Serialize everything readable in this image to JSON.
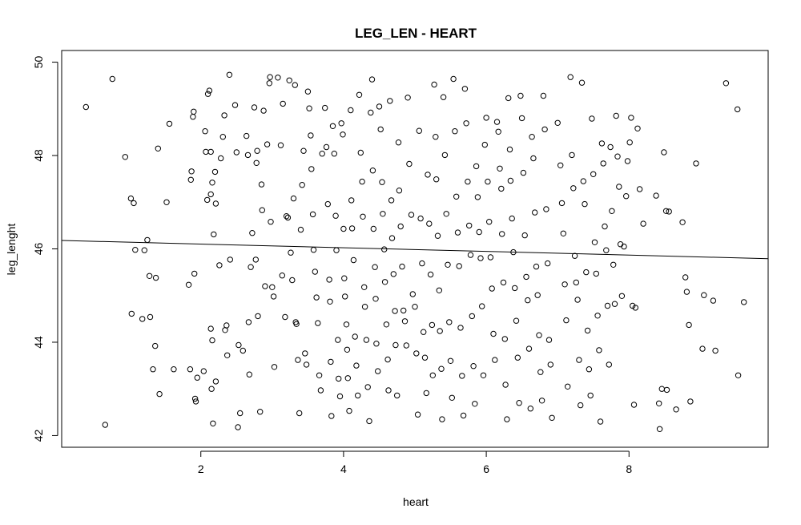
{
  "chart_data": {
    "type": "scatter",
    "title": "LEG_LEN - HEART",
    "xlabel": "heart",
    "ylabel": "leg_lenght",
    "xlim": [
      0.05,
      9.95
    ],
    "ylim": [
      41.75,
      50.25
    ],
    "xticks": [
      2,
      4,
      6,
      8
    ],
    "yticks": [
      42,
      44,
      46,
      48,
      50
    ],
    "marker": "open-circle",
    "colors": {
      "points": "#000000",
      "line": "#000000",
      "frame": "#000000",
      "background": "#ffffff"
    },
    "grid": false,
    "legend": "none",
    "regression_line": {
      "x": [
        0.05,
        9.95
      ],
      "y": [
        46.18,
        45.79
      ]
    },
    "points": [
      [
        0.39,
        49.04
      ],
      [
        0.76,
        49.64
      ],
      [
        0.94,
        47.97
      ],
      [
        1.02,
        47.08
      ],
      [
        1.06,
        46.98
      ],
      [
        1.08,
        45.98
      ],
      [
        1.21,
        45.97
      ],
      [
        1.25,
        46.19
      ],
      [
        1.28,
        45.42
      ],
      [
        1.33,
        43.42
      ],
      [
        1.37,
        45.38
      ],
      [
        1.4,
        48.15
      ],
      [
        1.42,
        42.89
      ],
      [
        1.03,
        44.61
      ],
      [
        1.18,
        44.5
      ],
      [
        1.29,
        44.54
      ],
      [
        1.36,
        43.92
      ],
      [
        0.66,
        42.23
      ],
      [
        1.52,
        47.0
      ],
      [
        1.56,
        48.68
      ],
      [
        1.62,
        43.42
      ],
      [
        1.83,
        45.23
      ],
      [
        1.86,
        47.48
      ],
      [
        1.87,
        47.66
      ],
      [
        1.89,
        48.83
      ],
      [
        1.9,
        48.94
      ],
      [
        1.91,
        45.47
      ],
      [
        1.92,
        42.79
      ],
      [
        1.85,
        43.42
      ],
      [
        1.93,
        42.73
      ],
      [
        1.95,
        43.24
      ],
      [
        2.06,
        48.52
      ],
      [
        2.07,
        48.08
      ],
      [
        2.09,
        47.05
      ],
      [
        2.1,
        49.32
      ],
      [
        2.12,
        49.39
      ],
      [
        2.14,
        48.08
      ],
      [
        2.14,
        47.17
      ],
      [
        2.16,
        47.42
      ],
      [
        2.18,
        46.31
      ],
      [
        2.2,
        47.65
      ],
      [
        2.21,
        46.97
      ],
      [
        2.14,
        44.29
      ],
      [
        2.16,
        44.04
      ],
      [
        2.17,
        42.26
      ],
      [
        2.21,
        43.16
      ],
      [
        2.04,
        43.38
      ],
      [
        2.15,
        43.0
      ],
      [
        2.26,
        45.65
      ],
      [
        2.28,
        47.94
      ],
      [
        2.31,
        48.4
      ],
      [
        2.33,
        48.86
      ],
      [
        2.34,
        44.26
      ],
      [
        2.36,
        44.36
      ],
      [
        2.37,
        43.72
      ],
      [
        2.4,
        49.73
      ],
      [
        2.41,
        45.77
      ],
      [
        2.48,
        49.08
      ],
      [
        2.5,
        48.07
      ],
      [
        2.52,
        42.18
      ],
      [
        2.53,
        43.94
      ],
      [
        2.55,
        42.48
      ],
      [
        2.59,
        43.82
      ],
      [
        2.64,
        48.42
      ],
      [
        2.66,
        48.01
      ],
      [
        2.67,
        44.43
      ],
      [
        2.68,
        43.31
      ],
      [
        2.7,
        45.61
      ],
      [
        2.72,
        46.34
      ],
      [
        2.75,
        49.03
      ],
      [
        2.77,
        45.77
      ],
      [
        2.78,
        47.84
      ],
      [
        2.79,
        48.1
      ],
      [
        2.8,
        44.56
      ],
      [
        2.83,
        42.51
      ],
      [
        2.85,
        47.38
      ],
      [
        2.86,
        46.83
      ],
      [
        2.88,
        48.96
      ],
      [
        2.9,
        45.2
      ],
      [
        2.93,
        48.24
      ],
      [
        2.96,
        49.55
      ],
      [
        2.97,
        49.68
      ],
      [
        2.98,
        46.58
      ],
      [
        3.0,
        45.18
      ],
      [
        3.02,
        44.98
      ],
      [
        3.03,
        43.47
      ],
      [
        3.08,
        49.67
      ],
      [
        3.12,
        48.22
      ],
      [
        3.14,
        45.43
      ],
      [
        3.15,
        49.11
      ],
      [
        3.18,
        44.54
      ],
      [
        3.2,
        46.7
      ],
      [
        3.22,
        46.67
      ],
      [
        3.24,
        49.61
      ],
      [
        3.26,
        45.92
      ],
      [
        3.28,
        45.33
      ],
      [
        3.3,
        47.08
      ],
      [
        3.32,
        49.51
      ],
      [
        3.33,
        44.43
      ],
      [
        3.34,
        44.39
      ],
      [
        3.36,
        43.62
      ],
      [
        3.38,
        42.48
      ],
      [
        3.4,
        46.41
      ],
      [
        3.42,
        47.37
      ],
      [
        3.44,
        48.1
      ],
      [
        3.46,
        43.76
      ],
      [
        3.48,
        43.52
      ],
      [
        3.5,
        49.37
      ],
      [
        3.52,
        49.01
      ],
      [
        3.54,
        48.43
      ],
      [
        3.55,
        47.71
      ],
      [
        3.57,
        46.74
      ],
      [
        3.58,
        45.98
      ],
      [
        3.6,
        45.51
      ],
      [
        3.62,
        44.96
      ],
      [
        3.64,
        44.41
      ],
      [
        3.66,
        43.29
      ],
      [
        3.68,
        42.97
      ],
      [
        3.7,
        48.04
      ],
      [
        3.74,
        49.02
      ],
      [
        3.76,
        48.18
      ],
      [
        3.78,
        46.96
      ],
      [
        3.8,
        45.34
      ],
      [
        3.81,
        44.87
      ],
      [
        3.82,
        43.58
      ],
      [
        3.83,
        42.42
      ],
      [
        3.85,
        48.63
      ],
      [
        3.87,
        48.04
      ],
      [
        3.89,
        46.71
      ],
      [
        3.9,
        45.97
      ],
      [
        3.92,
        44.05
      ],
      [
        3.93,
        43.22
      ],
      [
        3.95,
        42.84
      ],
      [
        3.97,
        48.69
      ],
      [
        3.99,
        48.45
      ],
      [
        4.0,
        46.43
      ],
      [
        4.01,
        45.37
      ],
      [
        4.02,
        44.98
      ],
      [
        4.04,
        44.38
      ],
      [
        4.05,
        43.84
      ],
      [
        4.06,
        43.23
      ],
      [
        4.08,
        42.53
      ],
      [
        4.1,
        48.97
      ],
      [
        4.11,
        47.04
      ],
      [
        4.12,
        46.44
      ],
      [
        4.14,
        45.76
      ],
      [
        4.16,
        44.12
      ],
      [
        4.18,
        43.5
      ],
      [
        4.2,
        42.86
      ],
      [
        4.22,
        49.3
      ],
      [
        4.24,
        48.06
      ],
      [
        4.26,
        47.44
      ],
      [
        4.27,
        46.69
      ],
      [
        4.29,
        45.18
      ],
      [
        4.3,
        44.76
      ],
      [
        4.32,
        44.05
      ],
      [
        4.34,
        43.04
      ],
      [
        4.36,
        42.31
      ],
      [
        4.38,
        48.92
      ],
      [
        4.4,
        49.63
      ],
      [
        4.41,
        47.68
      ],
      [
        4.42,
        46.43
      ],
      [
        4.44,
        45.61
      ],
      [
        4.45,
        44.93
      ],
      [
        4.46,
        43.97
      ],
      [
        4.48,
        43.38
      ],
      [
        4.5,
        49.05
      ],
      [
        4.52,
        48.56
      ],
      [
        4.54,
        47.43
      ],
      [
        4.55,
        46.75
      ],
      [
        4.57,
        45.99
      ],
      [
        4.58,
        45.29
      ],
      [
        4.6,
        44.38
      ],
      [
        4.62,
        43.63
      ],
      [
        4.63,
        42.97
      ],
      [
        4.65,
        49.17
      ],
      [
        4.67,
        47.04
      ],
      [
        4.68,
        46.23
      ],
      [
        4.7,
        45.46
      ],
      [
        4.72,
        44.67
      ],
      [
        4.73,
        43.94
      ],
      [
        4.75,
        42.86
      ],
      [
        4.77,
        48.28
      ],
      [
        4.78,
        47.25
      ],
      [
        4.8,
        46.48
      ],
      [
        4.82,
        45.62
      ],
      [
        4.84,
        44.68
      ],
      [
        4.86,
        44.45
      ],
      [
        4.88,
        43.93
      ],
      [
        4.9,
        49.24
      ],
      [
        4.92,
        47.82
      ],
      [
        4.95,
        46.73
      ],
      [
        4.97,
        45.03
      ],
      [
        5.0,
        44.76
      ],
      [
        5.02,
        43.76
      ],
      [
        5.04,
        42.45
      ],
      [
        5.06,
        48.53
      ],
      [
        5.08,
        46.65
      ],
      [
        5.1,
        45.69
      ],
      [
        5.12,
        44.22
      ],
      [
        5.14,
        43.67
      ],
      [
        5.16,
        42.91
      ],
      [
        5.18,
        47.59
      ],
      [
        5.2,
        46.54
      ],
      [
        5.22,
        45.45
      ],
      [
        5.24,
        44.37
      ],
      [
        5.25,
        43.29
      ],
      [
        5.27,
        49.52
      ],
      [
        5.29,
        48.4
      ],
      [
        5.3,
        47.49
      ],
      [
        5.32,
        46.28
      ],
      [
        5.34,
        45.11
      ],
      [
        5.35,
        44.24
      ],
      [
        5.37,
        43.43
      ],
      [
        5.38,
        42.35
      ],
      [
        5.4,
        49.25
      ],
      [
        5.42,
        48.01
      ],
      [
        5.44,
        46.75
      ],
      [
        5.46,
        45.66
      ],
      [
        5.48,
        44.43
      ],
      [
        5.5,
        43.6
      ],
      [
        5.52,
        42.81
      ],
      [
        5.54,
        49.64
      ],
      [
        5.56,
        48.52
      ],
      [
        5.58,
        47.12
      ],
      [
        5.6,
        46.35
      ],
      [
        5.62,
        45.63
      ],
      [
        5.64,
        44.31
      ],
      [
        5.66,
        43.28
      ],
      [
        5.68,
        42.43
      ],
      [
        5.7,
        49.43
      ],
      [
        5.72,
        48.69
      ],
      [
        5.74,
        47.44
      ],
      [
        5.76,
        46.5
      ],
      [
        5.78,
        45.87
      ],
      [
        5.8,
        44.56
      ],
      [
        5.82,
        43.49
      ],
      [
        5.84,
        42.68
      ],
      [
        5.86,
        47.77
      ],
      [
        5.88,
        47.11
      ],
      [
        5.9,
        46.36
      ],
      [
        5.92,
        45.8
      ],
      [
        5.94,
        44.77
      ],
      [
        5.96,
        43.29
      ],
      [
        5.98,
        48.23
      ],
      [
        6.0,
        48.81
      ],
      [
        6.02,
        47.44
      ],
      [
        6.04,
        46.58
      ],
      [
        6.06,
        45.82
      ],
      [
        6.08,
        45.15
      ],
      [
        6.1,
        44.18
      ],
      [
        6.12,
        43.62
      ],
      [
        6.15,
        48.72
      ],
      [
        6.17,
        48.51
      ],
      [
        6.19,
        47.72
      ],
      [
        6.21,
        47.29
      ],
      [
        6.22,
        46.32
      ],
      [
        6.24,
        45.28
      ],
      [
        6.26,
        44.07
      ],
      [
        6.27,
        43.09
      ],
      [
        6.29,
        42.35
      ],
      [
        6.31,
        49.23
      ],
      [
        6.33,
        48.13
      ],
      [
        6.34,
        47.46
      ],
      [
        6.36,
        46.65
      ],
      [
        6.38,
        45.93
      ],
      [
        6.4,
        45.16
      ],
      [
        6.42,
        44.46
      ],
      [
        6.44,
        43.67
      ],
      [
        6.46,
        42.7
      ],
      [
        6.48,
        49.28
      ],
      [
        6.5,
        48.8
      ],
      [
        6.52,
        47.63
      ],
      [
        6.54,
        46.29
      ],
      [
        6.56,
        45.4
      ],
      [
        6.58,
        44.9
      ],
      [
        6.6,
        43.86
      ],
      [
        6.62,
        42.58
      ],
      [
        6.64,
        48.4
      ],
      [
        6.66,
        47.94
      ],
      [
        6.68,
        46.78
      ],
      [
        6.7,
        45.62
      ],
      [
        6.72,
        45.01
      ],
      [
        6.74,
        44.15
      ],
      [
        6.76,
        43.36
      ],
      [
        6.78,
        42.75
      ],
      [
        6.8,
        49.28
      ],
      [
        6.82,
        48.56
      ],
      [
        6.84,
        46.85
      ],
      [
        6.86,
        45.69
      ],
      [
        6.88,
        44.05
      ],
      [
        6.9,
        43.52
      ],
      [
        6.92,
        42.38
      ],
      [
        7.0,
        48.7
      ],
      [
        7.04,
        47.79
      ],
      [
        7.06,
        46.98
      ],
      [
        7.08,
        46.33
      ],
      [
        7.1,
        45.24
      ],
      [
        7.12,
        44.47
      ],
      [
        7.14,
        43.05
      ],
      [
        7.18,
        49.68
      ],
      [
        7.2,
        48.01
      ],
      [
        7.22,
        47.3
      ],
      [
        7.24,
        45.85
      ],
      [
        7.26,
        45.28
      ],
      [
        7.28,
        44.91
      ],
      [
        7.3,
        43.62
      ],
      [
        7.32,
        42.65
      ],
      [
        7.34,
        49.56
      ],
      [
        7.36,
        47.45
      ],
      [
        7.38,
        46.96
      ],
      [
        7.4,
        45.5
      ],
      [
        7.42,
        44.25
      ],
      [
        7.44,
        43.42
      ],
      [
        7.46,
        42.86
      ],
      [
        7.48,
        48.79
      ],
      [
        7.5,
        47.6
      ],
      [
        7.52,
        46.14
      ],
      [
        7.54,
        45.47
      ],
      [
        7.56,
        44.57
      ],
      [
        7.58,
        43.83
      ],
      [
        7.6,
        42.3
      ],
      [
        7.62,
        48.26
      ],
      [
        7.64,
        47.83
      ],
      [
        7.66,
        46.48
      ],
      [
        7.68,
        45.97
      ],
      [
        7.7,
        44.78
      ],
      [
        7.72,
        43.52
      ],
      [
        7.74,
        48.18
      ],
      [
        7.76,
        46.81
      ],
      [
        7.78,
        45.66
      ],
      [
        7.8,
        44.82
      ],
      [
        7.82,
        48.85
      ],
      [
        7.84,
        47.98
      ],
      [
        7.86,
        47.33
      ],
      [
        7.88,
        46.1
      ],
      [
        7.9,
        44.99
      ],
      [
        7.93,
        46.05
      ],
      [
        7.96,
        47.13
      ],
      [
        7.98,
        47.88
      ],
      [
        8.01,
        48.28
      ],
      [
        8.03,
        48.81
      ],
      [
        8.05,
        44.78
      ],
      [
        8.07,
        42.66
      ],
      [
        8.09,
        44.74
      ],
      [
        8.12,
        48.58
      ],
      [
        8.15,
        47.28
      ],
      [
        8.2,
        46.54
      ],
      [
        8.38,
        47.14
      ],
      [
        8.43,
        42.14
      ],
      [
        8.46,
        43.0
      ],
      [
        8.49,
        48.07
      ],
      [
        8.52,
        46.81
      ],
      [
        8.66,
        42.56
      ],
      [
        8.75,
        46.57
      ],
      [
        8.79,
        45.39
      ],
      [
        8.81,
        45.08
      ],
      [
        8.84,
        44.37
      ],
      [
        8.86,
        42.73
      ],
      [
        8.94,
        47.83
      ],
      [
        9.03,
        43.86
      ],
      [
        9.05,
        45.01
      ],
      [
        9.18,
        44.89
      ],
      [
        9.21,
        43.82
      ],
      [
        9.36,
        49.55
      ],
      [
        9.53,
        43.29
      ],
      [
        9.61,
        44.86
      ],
      [
        9.52,
        48.99
      ],
      [
        8.42,
        42.69
      ],
      [
        8.53,
        42.98
      ],
      [
        8.56,
        46.8
      ]
    ]
  }
}
